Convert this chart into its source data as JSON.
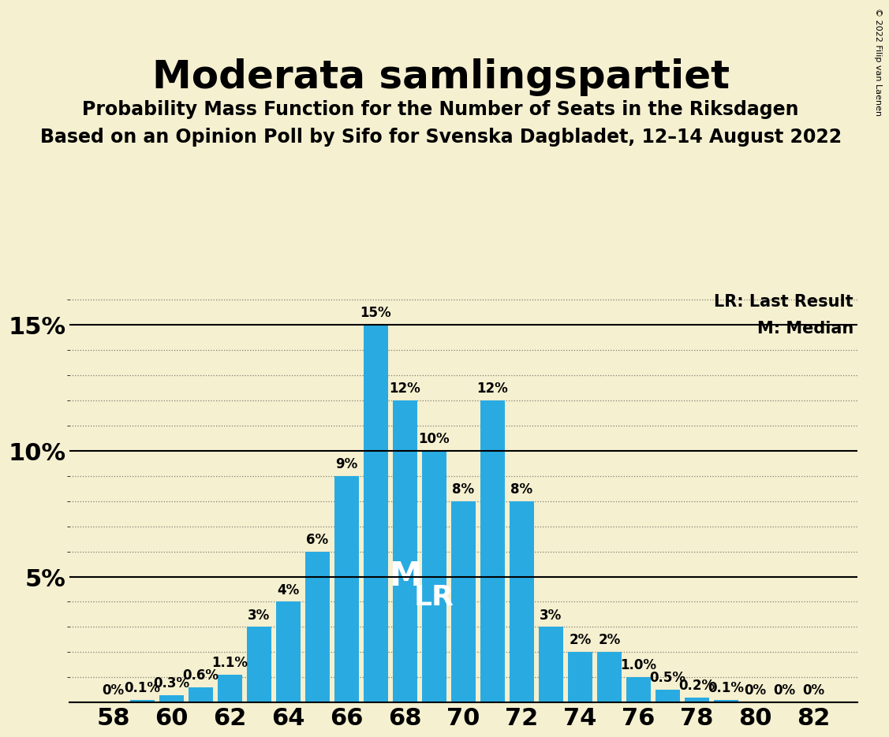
{
  "title": "Moderata samlingspartiet",
  "subtitle1": "Probability Mass Function for the Number of Seats in the Riksdagen",
  "subtitle2": "Based on an Opinion Poll by Sifo for Svenska Dagbladet, 12–14 August 2022",
  "copyright": "© 2022 Filip van Laenen",
  "seats": [
    58,
    59,
    60,
    61,
    62,
    63,
    64,
    65,
    66,
    67,
    68,
    69,
    70,
    71,
    72,
    73,
    74,
    75,
    76,
    77,
    78,
    79,
    80,
    81,
    82
  ],
  "values": [
    0.0,
    0.1,
    0.3,
    0.6,
    1.1,
    3.0,
    4.0,
    6.0,
    9.0,
    15.0,
    12.0,
    10.0,
    8.0,
    12.0,
    8.0,
    3.0,
    2.0,
    2.0,
    1.0,
    0.5,
    0.2,
    0.1,
    0.0,
    0.0,
    0.0
  ],
  "labels": [
    "0%",
    "0.1%",
    "0.3%",
    "0.6%",
    "1.1%",
    "3%",
    "4%",
    "6%",
    "9%",
    "15%",
    "12%",
    "10%",
    "8%",
    "12%",
    "8%",
    "3%",
    "2%",
    "2%",
    "1.0%",
    "0.5%",
    "0.2%",
    "0.1%",
    "0%",
    "0%",
    "0%"
  ],
  "bar_color": "#29ABE2",
  "background_color": "#F5F0D0",
  "median_seat": 68,
  "lr_seat": 69,
  "median_label_fontsize": 30,
  "lr_label_fontsize": 26,
  "title_fontsize": 36,
  "subtitle_fontsize": 17,
  "axis_tick_fontsize": 22,
  "bar_label_fontsize": 12,
  "copyright_fontsize": 8,
  "legend_fontsize": 15,
  "ylim": [
    0,
    16.5
  ],
  "bar_width": 0.85
}
